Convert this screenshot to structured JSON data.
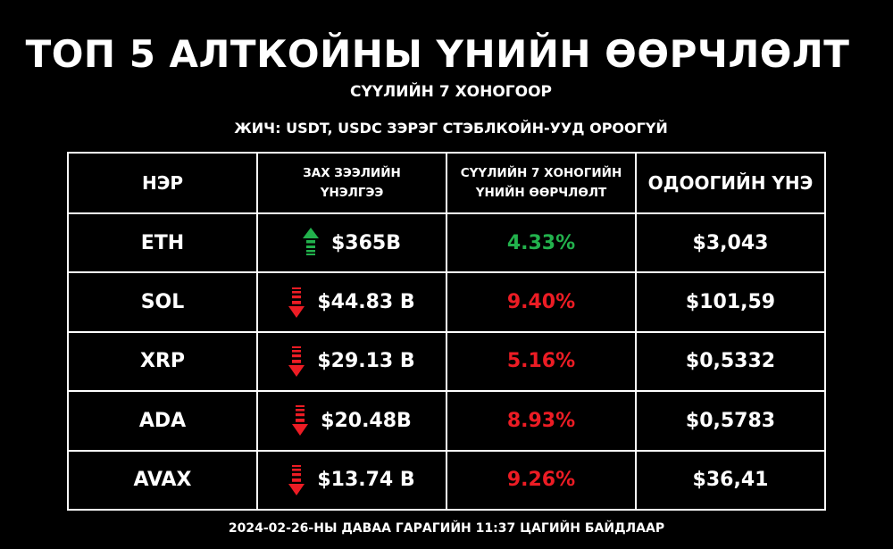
{
  "header": {
    "title": "ТОП 5 АЛТКОЙНЫ ҮНИЙН ӨӨРЧЛӨЛТ",
    "subtitle": "СҮҮЛИЙН 7 ХОНОГООР",
    "note": "ЖИЧ: USDT, USDC ЗЭРЭГ СТЭБЛКОЙН-УУД ОРООГҮЙ"
  },
  "table": {
    "columns": [
      "НЭР",
      "ЗАХ ЗЭЭЛИЙН ҮНЭЛГЭЭ",
      "СҮҮЛИЙН 7 ХОНОГИЙН ҮНИЙН ӨӨРЧЛӨЛТ",
      "ОДООГИЙН ҮНЭ"
    ],
    "rows": [
      [
        "ETH",
        "$365B",
        "4.33%",
        "$3,043"
      ],
      [
        "SOL",
        "$44.83 B",
        "9.40%",
        "$101,59"
      ],
      [
        "XRP",
        "$29.13 B",
        "5.16%",
        "$0,5332"
      ],
      [
        "ADA",
        "$20.48B",
        "8.93%",
        "$0,5783"
      ],
      [
        "AVAX",
        "$13.74 B",
        "9.26%",
        "$36,41"
      ]
    ],
    "trends": [
      "up",
      "down",
      "down",
      "down",
      "down"
    ],
    "colors": {
      "up": "#22b14c",
      "down": "#ec1c24"
    }
  },
  "footer": "2024-02-26-НЫ ДАВАА ГАРАГИЙН 11:37 ЦАГИЙН БАЙДЛААР"
}
